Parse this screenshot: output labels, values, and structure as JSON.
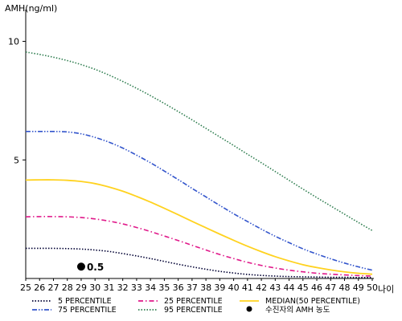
{
  "chart_data": {
    "type": "line",
    "title": "",
    "ylabel": "AMH(ng/ml)",
    "xlabel": "나이",
    "xlim": [
      25,
      50
    ],
    "ylim": [
      0,
      11
    ],
    "x_ticks": [
      25,
      26,
      27,
      28,
      29,
      30,
      31,
      32,
      33,
      34,
      35,
      36,
      37,
      38,
      39,
      40,
      41,
      42,
      43,
      44,
      45,
      46,
      47,
      48,
      49,
      50
    ],
    "y_ticks": [
      5,
      10
    ],
    "x": [
      25,
      26,
      27,
      28,
      29,
      30,
      31,
      32,
      33,
      34,
      35,
      36,
      37,
      38,
      39,
      40,
      41,
      42,
      43,
      44,
      45,
      46,
      47,
      48,
      49,
      50
    ],
    "series": [
      {
        "name": "5 PERCENTILE",
        "color": "#000033",
        "dash": "dotted",
        "values": [
          1.27,
          1.27,
          1.27,
          1.26,
          1.24,
          1.2,
          1.14,
          1.05,
          0.95,
          0.84,
          0.72,
          0.6,
          0.49,
          0.39,
          0.3,
          0.23,
          0.17,
          0.13,
          0.1,
          0.08,
          0.07,
          0.06,
          0.05,
          0.05,
          0.04,
          0.04
        ]
      },
      {
        "name": "25 PERCENTILE",
        "color": "#e0198a",
        "dash": "dashdot",
        "values": [
          2.6,
          2.61,
          2.61,
          2.6,
          2.57,
          2.51,
          2.42,
          2.3,
          2.15,
          1.98,
          1.79,
          1.6,
          1.4,
          1.2,
          1.01,
          0.84,
          0.68,
          0.55,
          0.44,
          0.35,
          0.28,
          0.22,
          0.18,
          0.15,
          0.12,
          0.1
        ]
      },
      {
        "name": "MEDIAN(50 PERCENTILE)",
        "color": "#ffd21f",
        "dash": "solid",
        "values": [
          4.15,
          4.16,
          4.16,
          4.14,
          4.09,
          4.0,
          3.86,
          3.68,
          3.46,
          3.22,
          2.96,
          2.69,
          2.41,
          2.14,
          1.87,
          1.61,
          1.36,
          1.13,
          0.92,
          0.74,
          0.58,
          0.46,
          0.36,
          0.28,
          0.22,
          0.18
        ]
      },
      {
        "name": "75 PERCENTILE",
        "color": "#3355cc",
        "dash": "dashdotdot",
        "values": [
          6.2,
          6.2,
          6.2,
          6.18,
          6.1,
          5.95,
          5.75,
          5.5,
          5.2,
          4.88,
          4.53,
          4.17,
          3.8,
          3.44,
          3.08,
          2.73,
          2.4,
          2.08,
          1.78,
          1.51,
          1.25,
          1.03,
          0.83,
          0.65,
          0.49,
          0.35
        ]
      },
      {
        "name": "95 PERCENTILE",
        "color": "#2e7d4f",
        "dash": "dotted",
        "values": [
          9.55,
          9.45,
          9.33,
          9.19,
          9.02,
          8.82,
          8.58,
          8.31,
          8.02,
          7.71,
          7.38,
          7.04,
          6.69,
          6.33,
          5.97,
          5.61,
          5.24,
          4.88,
          4.51,
          4.14,
          3.77,
          3.41,
          3.06,
          2.71,
          2.36,
          2.02
        ]
      }
    ],
    "markers": [
      {
        "name": "수진자의 AMH 농도",
        "x": 29,
        "y": 0.5,
        "label": "0.5",
        "color": "#000000"
      }
    ],
    "legend": {
      "placement": "bottom",
      "items": [
        {
          "label": "5 PERCENTILE",
          "series": 0
        },
        {
          "label": "25 PERCENTILE",
          "series": 1
        },
        {
          "label": "MEDIAN(50 PERCENTILE)",
          "series": 2
        },
        {
          "label": "75 PERCENTILE",
          "series": 3
        },
        {
          "label": "95 PERCENTILE",
          "series": 4
        },
        {
          "label": "수진자의 AMH 농도",
          "marker": 0
        }
      ]
    },
    "grid": false
  }
}
